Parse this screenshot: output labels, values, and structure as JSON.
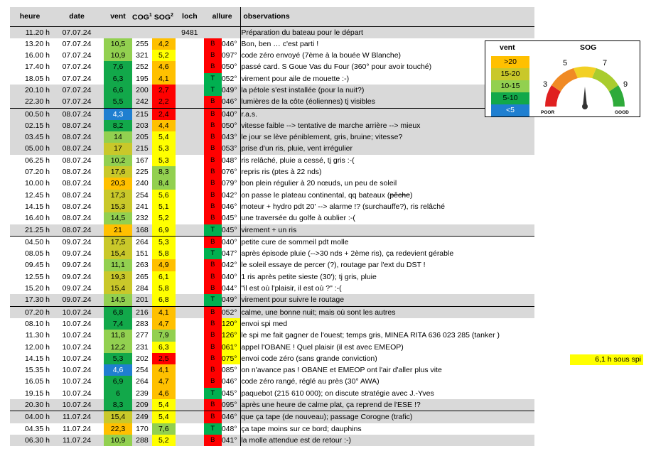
{
  "columns": {
    "heure": "heure",
    "date": "date",
    "vent": "vent",
    "cog": "COG",
    "cog_sup": "1",
    "sog": "SOG",
    "sog_sup": "2",
    "loch": "loch",
    "allure": "allure",
    "obs": "observations"
  },
  "colors": {
    "vent_lt5": "#1f7fd0",
    "vent_5_10": "#12a84a",
    "vent_10_15": "#92d050",
    "vent_15_20": "#c9c82a",
    "vent_gt20": "#ffc000",
    "sog_lt3": "#ff0000",
    "sog_3_5": "#ffc000",
    "sog_5_7": "#ffff00",
    "sog_7_9": "#92d050",
    "allure_B": "#ff0000",
    "allure_T": "#00b050"
  },
  "rows": [
    {
      "heure": "11.20 h",
      "date": "07.07.24",
      "vent": "",
      "cog": "",
      "sog": "",
      "loch": "9481",
      "allure": "",
      "deg": "",
      "obs": "Préparation du bateau pour le départ"
    },
    {
      "heure": "13.20 h",
      "date": "07.07.24",
      "vent": "10,5",
      "cog": "255",
      "sog": "4,2",
      "loch": "",
      "allure": "B",
      "deg": "046°",
      "obs": "Bon, ben … c'est parti !"
    },
    {
      "heure": "16.00 h",
      "date": "07.07.24",
      "vent": "10,9",
      "cog": "321",
      "sog": "5,2",
      "loch": "",
      "allure": "B",
      "deg": "097°",
      "obs": "code zéro envoyé (7ème à la bouée W Blanche)"
    },
    {
      "heure": "17.40 h",
      "date": "07.07.24",
      "vent": "7,6",
      "cog": "252",
      "sog": "4,6",
      "loch": "",
      "allure": "B",
      "deg": "050°",
      "obs": "passé card. S Goue Vas du Four (360° pour avoir touché)"
    },
    {
      "heure": "18.05 h",
      "date": "07.07.24",
      "vent": "6,3",
      "cog": "195",
      "sog": "4,1",
      "loch": "",
      "allure": "T",
      "deg": "052°",
      "obs": "virement pour aile de mouette :-)"
    },
    {
      "heure": "20.10 h",
      "date": "07.07.24",
      "vent": "6,6",
      "cog": "200",
      "sog": "2,7",
      "loch": "",
      "allure": "T",
      "deg": "049°",
      "obs": "la pétole s'est installée (pour la nuit?)"
    },
    {
      "heure": "22.30 h",
      "date": "07.07.24",
      "vent": "5,5",
      "cog": "242",
      "sog": "2,2",
      "loch": "",
      "allure": "B",
      "deg": "046°",
      "obs": "lumières de la côte (éoliennes) tj visibles"
    },
    {
      "heure": "00.50 h",
      "date": "08.07.24",
      "vent": "4,3",
      "cog": "215",
      "sog": "2,4",
      "loch": "",
      "allure": "B",
      "deg": "040°",
      "obs": "r.a.s."
    },
    {
      "heure": "02.15 h",
      "date": "08.07.24",
      "vent": "8,2",
      "cog": "203",
      "sog": "4,4",
      "loch": "",
      "allure": "B",
      "deg": "050°",
      "obs": "vitesse faible --> tentative de marche arrière --> mieux"
    },
    {
      "heure": "03.45 h",
      "date": "08.07.24",
      "vent": "14",
      "cog": "205",
      "sog": "5,4",
      "loch": "",
      "allure": "B",
      "deg": "043°",
      "obs": "le jour se lève péniblement, gris, bruine; vitesse?"
    },
    {
      "heure": "05.00 h",
      "date": "08.07.24",
      "vent": "17",
      "cog": "215",
      "sog": "5,3",
      "loch": "",
      "allure": "B",
      "deg": "053°",
      "obs": "prise d'un ris, pluie, vent irrégulier"
    },
    {
      "heure": "06.25 h",
      "date": "08.07.24",
      "vent": "10,2",
      "cog": "167",
      "sog": "5,3",
      "loch": "",
      "allure": "B",
      "deg": "048°",
      "obs": "ris relâché, pluie a cessé, tj gris :-("
    },
    {
      "heure": "07.20 h",
      "date": "08.07.24",
      "vent": "17,6",
      "cog": "225",
      "sog": "8,3",
      "loch": "",
      "allure": "B",
      "deg": "076°",
      "obs": "repris ris (ptes à 22 nds)"
    },
    {
      "heure": "10.00 h",
      "date": "08.07.24",
      "vent": "20,3",
      "cog": "240",
      "sog": "8,4",
      "loch": "",
      "allure": "B",
      "deg": "079°",
      "obs": "bon plein régulier à 20 nœuds, un peu de soleil"
    },
    {
      "heure": "12.45 h",
      "date": "08.07.24",
      "vent": "17,3",
      "cog": "254",
      "sog": "5,6",
      "loch": "",
      "allure": "B",
      "deg": "042°",
      "obs": "on passe le plateau continental, qq bateaux (pêche)"
    },
    {
      "heure": "14.15 h",
      "date": "08.07.24",
      "vent": "15,3",
      "cog": "241",
      "sog": "5,1",
      "loch": "",
      "allure": "B",
      "deg": "046°",
      "obs": "moteur + hydro pdt 20' --> alarme !? (surchauffe?), ris relâché"
    },
    {
      "heure": "16.40 h",
      "date": "08.07.24",
      "vent": "14,5",
      "cog": "232",
      "sog": "5,2",
      "loch": "",
      "allure": "B",
      "deg": "045°",
      "obs": "une traversée du golfe à oublier :-("
    },
    {
      "heure": "21.25 h",
      "date": "08.07.24",
      "vent": "21",
      "cog": "168",
      "sog": "6,9",
      "loch": "",
      "allure": "T",
      "deg": "045°",
      "obs": "virement + un ris"
    },
    {
      "heure": "04.50 h",
      "date": "09.07.24",
      "vent": "17,5",
      "cog": "264",
      "sog": "5,3",
      "loch": "",
      "allure": "B",
      "deg": "040°",
      "obs": "petite cure de sommeil pdt molle"
    },
    {
      "heure": "08.05 h",
      "date": "09.07.24",
      "vent": "15,4",
      "cog": "151",
      "sog": "5,8",
      "loch": "",
      "allure": "T",
      "deg": "047°",
      "obs": "après épisode pluie (-->30 nds + 2ème ris), ça redevient gérable"
    },
    {
      "heure": "09.45 h",
      "date": "09.07.24",
      "vent": "11,1",
      "cog": "263",
      "sog": "4,9",
      "loch": "",
      "allure": "B",
      "deg": "042°",
      "obs": "le soleil essaye de percer (?), routage par l'ext du DST !"
    },
    {
      "heure": "12.55 h",
      "date": "09.07.24",
      "vent": "19,3",
      "cog": "265",
      "sog": "6,1",
      "loch": "",
      "allure": "B",
      "deg": "040°",
      "obs": "1 ris après petite sieste (30'); tj gris, pluie"
    },
    {
      "heure": "15.20 h",
      "date": "09.07.24",
      "vent": "15,4",
      "cog": "284",
      "sog": "5,8",
      "loch": "",
      "allure": "B",
      "deg": "044°",
      "obs": "\"il est où l'plaisir, il est où ?\" :-("
    },
    {
      "heure": "17.30 h",
      "date": "09.07.24",
      "vent": "14,5",
      "cog": "201",
      "sog": "6,8",
      "loch": "",
      "allure": "T",
      "deg": "049°",
      "obs": "virement pour suivre le routage"
    },
    {
      "heure": "07.20 h",
      "date": "10.07.24",
      "vent": "6,8",
      "cog": "216",
      "sog": "4,1",
      "loch": "",
      "allure": "B",
      "deg": "052°",
      "obs": "calme, une bonne nuit; mais où sont les autres"
    },
    {
      "heure": "08.10 h",
      "date": "10.07.24",
      "vent": "7,4",
      "cog": "283",
      "sog": "4,7",
      "loch": "",
      "allure": "B",
      "deg": "120°",
      "obs": "envoi spi med"
    },
    {
      "heure": "11.30 h",
      "date": "10.07.24",
      "vent": "11,8",
      "cog": "277",
      "sog": "7,9",
      "loch": "",
      "allure": "B",
      "deg": "126°",
      "obs": "le spi me fait gagner de l'ouest; temps gris, MINEA RITA 636 023 285 (tanker )"
    },
    {
      "heure": "12.00 h",
      "date": "10.07.24",
      "vent": "12,2",
      "cog": "231",
      "sog": "6,3",
      "loch": "",
      "allure": "B",
      "deg": "061°",
      "obs": "appel l'OBANE ! Quel plaisir (il est avec EMEOP)"
    },
    {
      "heure": "14.15 h",
      "date": "10.07.24",
      "vent": "5,3",
      "cog": "202",
      "sog": "2,5",
      "loch": "",
      "allure": "B",
      "deg": "075°",
      "obs": "envoi code zéro (sans grande conviction)"
    },
    {
      "heure": "15.35 h",
      "date": "10.07.24",
      "vent": "4,6",
      "cog": "254",
      "sog": "4,1",
      "loch": "",
      "allure": "B",
      "deg": "085°",
      "obs": "on n'avance pas ! OBANE et EMEOP ont l'air d'aller plus vite"
    },
    {
      "heure": "16.05 h",
      "date": "10.07.24",
      "vent": "6,9",
      "cog": "264",
      "sog": "4,7",
      "loch": "",
      "allure": "B",
      "deg": "046°",
      "obs": "code zéro rangé, réglé au près (30° AWA)"
    },
    {
      "heure": "19.15 h",
      "date": "10.07.24",
      "vent": "6",
      "cog": "239",
      "sog": "4,6",
      "loch": "",
      "allure": "T",
      "deg": "045°",
      "obs": "paquebot (215 610 000); on discute stratégie avec J.-Yves"
    },
    {
      "heure": "20.30 h",
      "date": "10.07.24",
      "vent": "8,3",
      "cog": "209",
      "sog": "5,4",
      "loch": "",
      "allure": "B",
      "deg": "095°",
      "obs": "après une heure de calme plat, ça reprend de l'ESE !?"
    },
    {
      "heure": "04.00 h",
      "date": "11.07.24",
      "vent": "15,4",
      "cog": "249",
      "sog": "5,4",
      "loch": "",
      "allure": "B",
      "deg": "046°",
      "obs": "que ça tape (de nouveau); passage Corogne (trafic)"
    },
    {
      "heure": "04.35 h",
      "date": "11.07.24",
      "vent": "22,3",
      "cog": "170",
      "sog": "7,6",
      "loch": "",
      "allure": "T",
      "deg": "048°",
      "obs": "ça tape moins sur ce bord; dauphins"
    },
    {
      "heure": "06.30 h",
      "date": "11.07.24",
      "vent": "10,9",
      "cog": "288",
      "sog": "5,2",
      "loch": "",
      "allure": "B",
      "deg": "041°",
      "obs": "la molle attendue est de retour :-)"
    }
  ],
  "extra_note": "6,1 h sous spi",
  "legend": {
    "vent_title": "vent",
    "sog_title": "SOG",
    "items": [
      ">20",
      "15-20",
      "10-15",
      "5-10",
      "<5"
    ],
    "gauge_ticks": [
      "3",
      "5",
      "7",
      "9"
    ],
    "poor": "POOR",
    "good": "GOOD"
  }
}
